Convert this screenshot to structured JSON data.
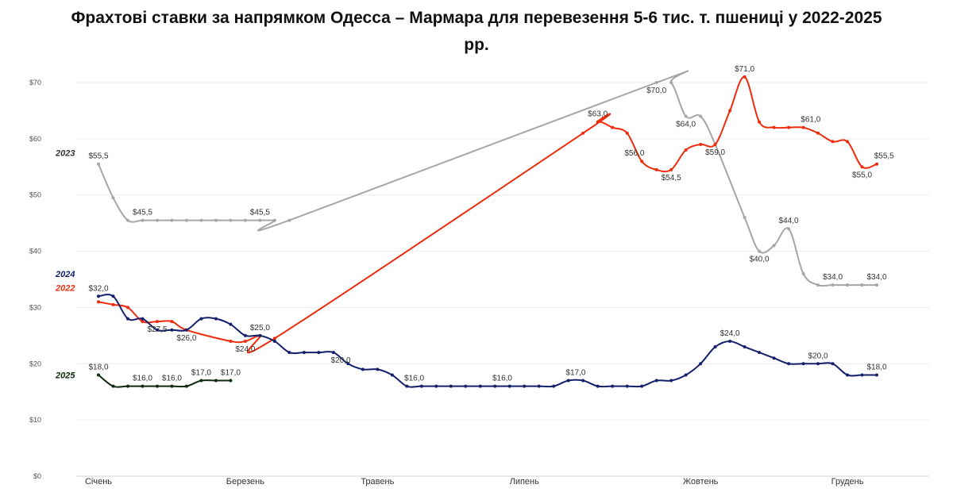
{
  "title_line1": "Фрахтові ставки за напрямком Одесса – Мармара для перевезення 5-6 тис. т. пшениці у 2022-2025",
  "title_line2": "рр.",
  "chart_data": {
    "type": "line",
    "title": "Фрахтові ставки за напрямком Одесса – Мармара для перевезення 5-6 тис. т. пшениці у 2022-2025 рр.",
    "ylim": [
      0,
      70
    ],
    "xlim": [
      0,
      53
    ],
    "yticks": [
      0,
      10,
      20,
      30,
      40,
      50,
      60,
      70
    ],
    "ytick_labels": [
      "$0",
      "$10",
      "$20",
      "$30",
      "$40",
      "$50",
      "$60",
      "$70"
    ],
    "x_month_ticks": [
      {
        "label": "Січень",
        "x": 0
      },
      {
        "label": "Березень",
        "x": 10
      },
      {
        "label": "Травень",
        "x": 19
      },
      {
        "label": "Липень",
        "x": 29
      },
      {
        "label": "Жовтень",
        "x": 41
      },
      {
        "label": "Грудень",
        "x": 51
      }
    ],
    "grid": true,
    "series": [
      {
        "name": "2023",
        "color": "#a6a6a6",
        "points": [
          [
            0,
            55.5
          ],
          [
            1,
            49.5
          ],
          [
            2,
            45.5
          ],
          [
            3,
            45.5
          ],
          [
            4,
            45.5
          ],
          [
            5,
            45.5
          ],
          [
            6,
            45.5
          ],
          [
            7,
            45.5
          ],
          [
            8,
            45.5
          ],
          [
            9,
            45.5
          ],
          [
            10,
            45.5
          ],
          [
            11,
            45.5
          ],
          [
            12,
            45.5
          ],
          [
            13,
            45.5
          ],
          [
            38,
            70
          ],
          [
            39,
            70
          ],
          [
            40,
            64
          ],
          [
            41,
            64
          ],
          [
            42,
            59
          ],
          [
            44,
            46
          ],
          [
            45,
            40
          ],
          [
            46,
            41
          ],
          [
            47,
            44
          ],
          [
            48,
            36
          ],
          [
            49,
            34
          ],
          [
            50,
            34
          ],
          [
            51,
            34
          ],
          [
            52,
            34
          ],
          [
            53,
            34
          ]
        ],
        "labels": [
          {
            "x": 0,
            "y": 55.5,
            "text": "$55,5",
            "pos": "above"
          },
          {
            "x": 3,
            "y": 45.5,
            "text": "$45,5",
            "pos": "above"
          },
          {
            "x": 11,
            "y": 45.5,
            "text": "$45,5",
            "pos": "above"
          },
          {
            "x": 38,
            "y": 70,
            "text": "$70,0",
            "pos": "below"
          },
          {
            "x": 40,
            "y": 64,
            "text": "$64,0",
            "pos": "below"
          },
          {
            "x": 45,
            "y": 40,
            "text": "$40,0",
            "pos": "below"
          },
          {
            "x": 47,
            "y": 44,
            "text": "$44,0",
            "pos": "above"
          },
          {
            "x": 50,
            "y": 34,
            "text": "$34,0",
            "pos": "above"
          },
          {
            "x": 53,
            "y": 34,
            "text": "$34,0",
            "pos": "above"
          }
        ]
      },
      {
        "name": "2022",
        "color": "#ee2b0c",
        "points": [
          [
            0,
            31
          ],
          [
            1,
            30.5
          ],
          [
            2,
            30
          ],
          [
            3,
            27.5
          ],
          [
            4,
            27.5
          ],
          [
            5,
            27.5
          ],
          [
            6,
            26
          ],
          [
            9,
            24
          ],
          [
            10,
            24
          ],
          [
            11,
            25
          ],
          [
            12,
            24.5
          ],
          [
            33,
            61
          ],
          [
            34,
            63
          ],
          [
            35,
            62
          ],
          [
            36,
            61
          ],
          [
            37,
            56
          ],
          [
            38,
            54.5
          ],
          [
            39,
            54.5
          ],
          [
            40,
            58
          ],
          [
            41,
            59
          ],
          [
            42,
            59
          ],
          [
            43,
            65
          ],
          [
            44,
            71
          ],
          [
            45,
            63
          ],
          [
            46,
            62
          ],
          [
            47,
            62
          ],
          [
            48,
            62
          ],
          [
            49,
            61
          ],
          [
            50,
            59.5
          ],
          [
            51,
            59.5
          ],
          [
            52,
            55
          ],
          [
            53,
            55.5
          ]
        ],
        "labels": [
          {
            "x": 4,
            "y": 27.5,
            "text": "$27,5",
            "pos": "below"
          },
          {
            "x": 6,
            "y": 26,
            "text": "$26,0",
            "pos": "below"
          },
          {
            "x": 10,
            "y": 24,
            "text": "$24,0",
            "pos": "below"
          },
          {
            "x": 34,
            "y": 63,
            "text": "$63,0",
            "pos": "above"
          },
          {
            "x": 36.5,
            "y": 56,
            "text": "$56,0",
            "pos": "above"
          },
          {
            "x": 39,
            "y": 54.5,
            "text": "$54,5",
            "pos": "below"
          },
          {
            "x": 42,
            "y": 59,
            "text": "$59,0",
            "pos": "below"
          },
          {
            "x": 44,
            "y": 71,
            "text": "$71,0",
            "pos": "above"
          },
          {
            "x": 48.5,
            "y": 62,
            "text": "$61,0",
            "pos": "above"
          },
          {
            "x": 52,
            "y": 55,
            "text": "$55,0",
            "pos": "below"
          },
          {
            "x": 53.5,
            "y": 55.5,
            "text": "$55,5",
            "pos": "above"
          }
        ]
      },
      {
        "name": "2024",
        "color": "#14206b",
        "points": [
          [
            0,
            32
          ],
          [
            1,
            32
          ],
          [
            2,
            28
          ],
          [
            3,
            28
          ],
          [
            4,
            26
          ],
          [
            5,
            26
          ],
          [
            6,
            26
          ],
          [
            7,
            28
          ],
          [
            8,
            28
          ],
          [
            9,
            27
          ],
          [
            10,
            25
          ],
          [
            11,
            25
          ],
          [
            12,
            24
          ],
          [
            13,
            22
          ],
          [
            14,
            22
          ],
          [
            15,
            22
          ],
          [
            16,
            22
          ],
          [
            17,
            20
          ],
          [
            18,
            19
          ],
          [
            19,
            19
          ],
          [
            20,
            18
          ],
          [
            21,
            16
          ],
          [
            22,
            16
          ],
          [
            23,
            16
          ],
          [
            24,
            16
          ],
          [
            25,
            16
          ],
          [
            26,
            16
          ],
          [
            27,
            16
          ],
          [
            28,
            16
          ],
          [
            29,
            16
          ],
          [
            30,
            16
          ],
          [
            31,
            16
          ],
          [
            32,
            17
          ],
          [
            33,
            17
          ],
          [
            34,
            16
          ],
          [
            35,
            16
          ],
          [
            36,
            16
          ],
          [
            37,
            16
          ],
          [
            38,
            17
          ],
          [
            39,
            17
          ],
          [
            40,
            18
          ],
          [
            41,
            20
          ],
          [
            42,
            23
          ],
          [
            43,
            24
          ],
          [
            44,
            23
          ],
          [
            45,
            22
          ],
          [
            46,
            21
          ],
          [
            47,
            20
          ],
          [
            48,
            20
          ],
          [
            49,
            20
          ],
          [
            50,
            20
          ],
          [
            51,
            18
          ],
          [
            52,
            18
          ],
          [
            53,
            18
          ]
        ],
        "labels": [
          {
            "x": 0,
            "y": 32,
            "text": "$32,0",
            "pos": "above"
          },
          {
            "x": 11,
            "y": 25,
            "text": "$25,0",
            "pos": "above"
          },
          {
            "x": 16.5,
            "y": 22,
            "text": "$20,0",
            "pos": "below"
          },
          {
            "x": 21.5,
            "y": 16,
            "text": "$16,0",
            "pos": "above"
          },
          {
            "x": 27.5,
            "y": 16,
            "text": "$16,0",
            "pos": "above"
          },
          {
            "x": 32.5,
            "y": 17,
            "text": "$17,0",
            "pos": "above"
          },
          {
            "x": 43,
            "y": 24,
            "text": "$24,0",
            "pos": "above"
          },
          {
            "x": 49,
            "y": 20,
            "text": "$20,0",
            "pos": "above"
          },
          {
            "x": 53,
            "y": 18,
            "text": "$18,0",
            "pos": "above"
          }
        ]
      },
      {
        "name": "2025",
        "color": "#0e2a10",
        "points": [
          [
            0,
            18
          ],
          [
            1,
            16
          ],
          [
            2,
            16
          ],
          [
            3,
            16
          ],
          [
            4,
            16
          ],
          [
            5,
            16
          ],
          [
            6,
            16
          ],
          [
            7,
            17
          ],
          [
            8,
            17
          ],
          [
            9,
            17
          ]
        ],
        "labels": [
          {
            "x": 0,
            "y": 18,
            "text": "$18,0",
            "pos": "above"
          },
          {
            "x": 3,
            "y": 16,
            "text": "$16,0",
            "pos": "above"
          },
          {
            "x": 5,
            "y": 16,
            "text": "$16,0",
            "pos": "above"
          },
          {
            "x": 7,
            "y": 17,
            "text": "$17,0",
            "pos": "above"
          },
          {
            "x": 9,
            "y": 17,
            "text": "$17,0",
            "pos": "above"
          }
        ]
      }
    ],
    "series_tags": [
      {
        "name": "2023",
        "y": 57.5,
        "color": "#333333"
      },
      {
        "name": "2024",
        "y": 36,
        "color": "#14206b"
      },
      {
        "name": "2022",
        "y": 33.5,
        "color": "#ee2b0c"
      },
      {
        "name": "2025",
        "y": 18,
        "color": "#0e2a10"
      }
    ]
  }
}
